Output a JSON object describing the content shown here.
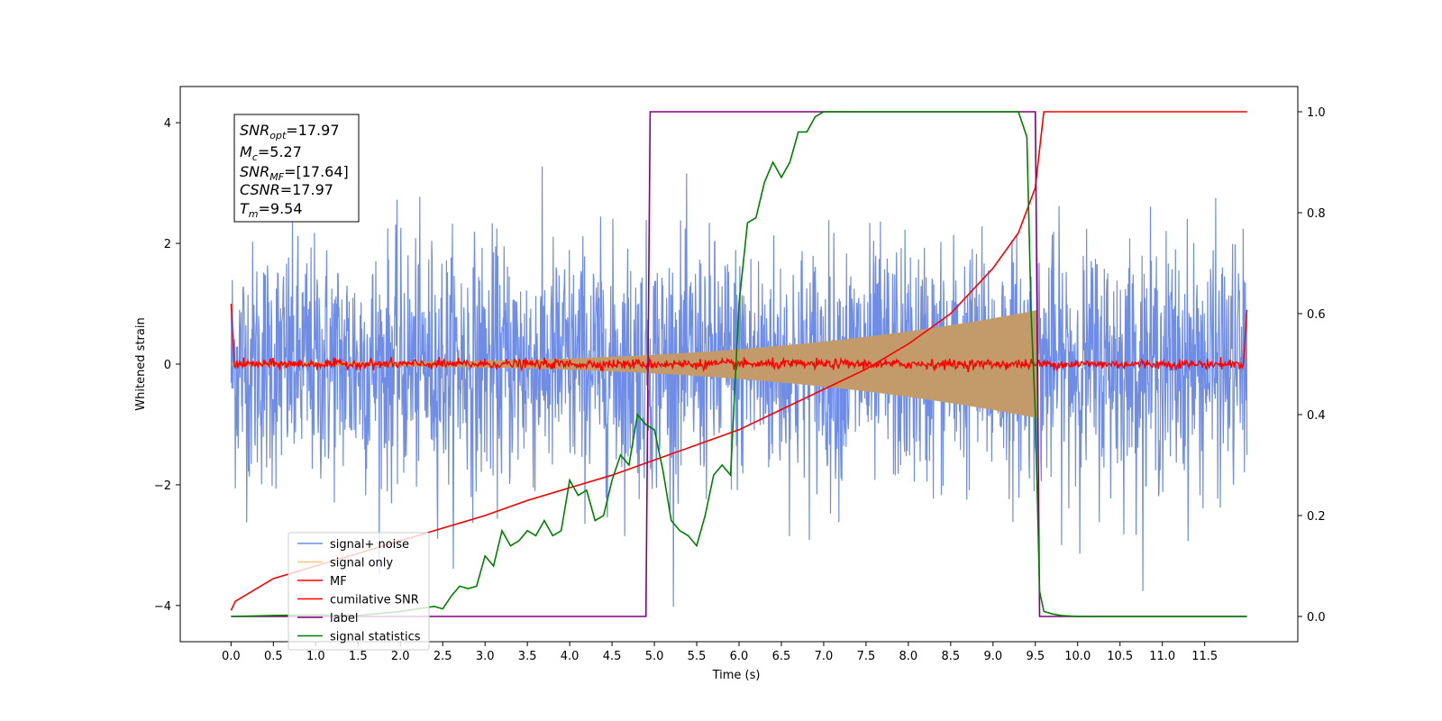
{
  "chart_data": {
    "type": "line",
    "xlabel": "Time (s)",
    "ylabel": "Whitened strain",
    "xlim": [
      -0.6,
      12.6
    ],
    "ylim": [
      -4.6,
      4.6
    ],
    "y2lim": [
      -0.05,
      1.05
    ],
    "x_ticks": [
      "0.0",
      "0.5",
      "1.0",
      "1.5",
      "2.0",
      "2.5",
      "3.0",
      "3.5",
      "4.0",
      "4.5",
      "5.0",
      "5.5",
      "6.0",
      "6.5",
      "7.0",
      "7.5",
      "8.0",
      "8.5",
      "9.0",
      "9.5",
      "10.0",
      "10.5",
      "11.0",
      "11.5"
    ],
    "y_ticks": [
      "4",
      "2",
      "0",
      "−2",
      "−4"
    ],
    "y2_ticks": [
      "1.0",
      "0.8",
      "0.6",
      "0.4",
      "0.2",
      "0.0"
    ],
    "legend_position": "lower-left",
    "annotation": {
      "snr_opt": {
        "sym": "SNR",
        "sub": "opt",
        "val": "=17.97"
      },
      "mc": {
        "sym": "M",
        "sub": "c",
        "val": "=5.27"
      },
      "snr_mf": {
        "sym": "SNR",
        "sub": "MF",
        "val": "=[17.64]"
      },
      "csnr": {
        "sym": "CSNR",
        "val": "=17.97"
      },
      "tm": {
        "sym": "T",
        "sub": "m",
        "val": "=9.54"
      }
    },
    "series": [
      {
        "name": "signal+ noise",
        "color": "#6f8de6",
        "axis": "left",
        "noise_std": 1.0,
        "x_range": [
          0,
          12
        ]
      },
      {
        "name": "signal only",
        "color": "#f5c775",
        "axis": "left",
        "envelope": {
          "t_start": 0,
          "t_merge": 9.54,
          "amp_start": 0.03,
          "amp_merge": 0.9
        }
      },
      {
        "name": "MF",
        "color": "#ff0000",
        "axis": "left",
        "noise_std": 0.04,
        "edge_value": 1.0
      },
      {
        "name": "cumilative SNR",
        "color": "#ff0000",
        "axis": "right",
        "x": [
          0,
          0.05,
          0.5,
          1.0,
          1.5,
          2.0,
          2.5,
          3.0,
          3.5,
          4.0,
          4.5,
          5.0,
          5.5,
          6.0,
          6.5,
          7.0,
          7.5,
          8.0,
          8.5,
          9.0,
          9.3,
          9.5,
          9.54,
          9.6,
          12.0
        ],
        "y": [
          0.012,
          0.03,
          0.075,
          0.1,
          0.125,
          0.15,
          0.175,
          0.2,
          0.23,
          0.255,
          0.28,
          0.31,
          0.34,
          0.37,
          0.41,
          0.45,
          0.49,
          0.54,
          0.6,
          0.69,
          0.76,
          0.85,
          0.91,
          1.0,
          1.0
        ]
      },
      {
        "name": "label",
        "color": "#800080",
        "axis": "right",
        "x": [
          0,
          4.9,
          4.95,
          9.5,
          9.55,
          12.0
        ],
        "y": [
          0,
          0,
          1,
          1,
          0,
          0
        ]
      },
      {
        "name": "signal statistics",
        "color": "#008000",
        "axis": "right",
        "x": [
          0,
          0.5,
          1.0,
          1.5,
          2.0,
          2.4,
          2.5,
          2.6,
          2.7,
          2.8,
          2.9,
          3.0,
          3.1,
          3.2,
          3.3,
          3.4,
          3.5,
          3.6,
          3.7,
          3.8,
          3.9,
          4.0,
          4.1,
          4.2,
          4.3,
          4.4,
          4.5,
          4.6,
          4.7,
          4.8,
          4.9,
          5.0,
          5.1,
          5.2,
          5.3,
          5.4,
          5.5,
          5.6,
          5.7,
          5.8,
          5.9,
          6.0,
          6.1,
          6.2,
          6.3,
          6.4,
          6.5,
          6.6,
          6.7,
          6.8,
          6.9,
          7.0,
          7.5,
          8.0,
          8.5,
          9.0,
          9.3,
          9.4,
          9.45,
          9.5,
          9.55,
          9.6,
          9.7,
          9.8,
          10.0,
          11.0,
          12.0
        ],
        "y": [
          0.0,
          0.002,
          0.003,
          0.002,
          0.01,
          0.02,
          0.015,
          0.04,
          0.06,
          0.055,
          0.06,
          0.12,
          0.1,
          0.17,
          0.14,
          0.15,
          0.17,
          0.16,
          0.19,
          0.16,
          0.17,
          0.27,
          0.24,
          0.25,
          0.19,
          0.2,
          0.27,
          0.32,
          0.3,
          0.4,
          0.38,
          0.37,
          0.29,
          0.19,
          0.17,
          0.16,
          0.14,
          0.2,
          0.28,
          0.3,
          0.28,
          0.62,
          0.78,
          0.79,
          0.86,
          0.9,
          0.87,
          0.9,
          0.96,
          0.96,
          0.99,
          1.0,
          1.0,
          1.0,
          1.0,
          1.0,
          1.0,
          0.95,
          0.6,
          0.4,
          0.05,
          0.01,
          0.005,
          0.002,
          0.0,
          0.0,
          0.0
        ]
      }
    ]
  }
}
